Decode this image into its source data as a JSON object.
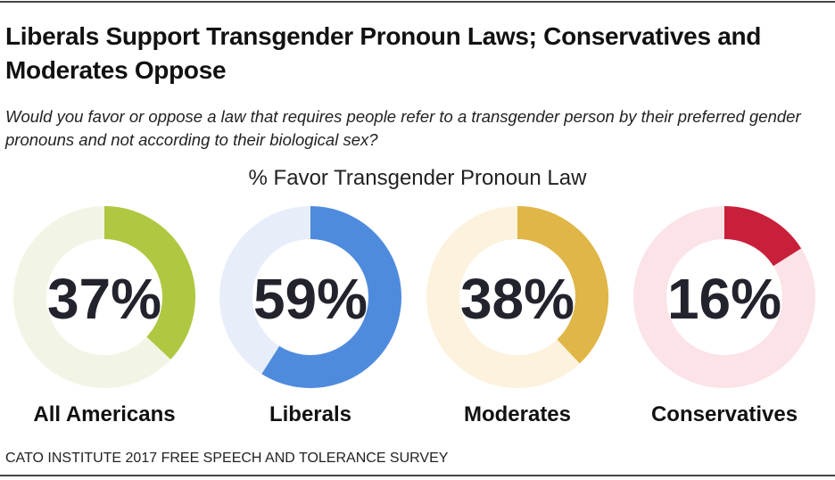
{
  "title": "Liberals Support Transgender Pronoun Laws; Conservatives and Moderates Oppose",
  "subtitle": "Would you favor or oppose a law that requires people refer to a transgender person by their preferred gender pronouns and not according to their biological sex?",
  "source": "CATO INSTITUTE 2017 FREE SPEECH AND TOLERANCE SURVEY",
  "chart_data": {
    "type": "pie",
    "title": "% Favor Transgender Pronoun Law",
    "series": [
      {
        "name": "All Americans",
        "value": 37,
        "label": "37%",
        "color": "#afc841",
        "track": "#f2f5e5"
      },
      {
        "name": "Liberals",
        "value": 59,
        "label": "59%",
        "color": "#4f8bdd",
        "track": "#e7eefa"
      },
      {
        "name": "Moderates",
        "value": 38,
        "label": "38%",
        "color": "#dfb647",
        "track": "#fcf2dd"
      },
      {
        "name": "Conservatives",
        "value": 16,
        "label": "16%",
        "color": "#c8203a",
        "track": "#fbe3e7"
      }
    ]
  }
}
